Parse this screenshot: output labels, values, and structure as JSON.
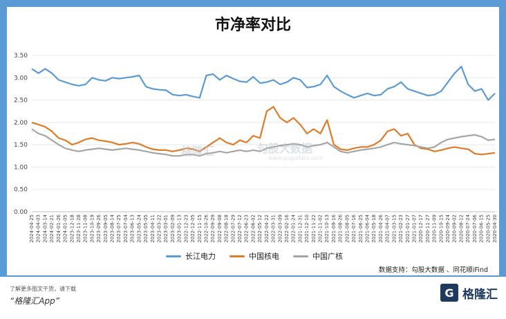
{
  "title": "市净率对比",
  "source": "数据支持：勾股大数据 、同花顺iFind",
  "watermark": {
    "brand": "格隆汇",
    "brand2": "勾股大数据",
    "url": "www.gogudata.com"
  },
  "footer": {
    "note": "了解更多图文干货，请下载",
    "app": "“格隆汇App”",
    "logo_text": "格隆汇"
  },
  "colors": {
    "series1": "#5b9bd5",
    "series2": "#e07b28",
    "series3": "#a5a5a5",
    "frame": "#5b9bd5"
  },
  "chart_data": {
    "type": "line",
    "title": "市净率对比",
    "ylim": [
      0,
      3.5
    ],
    "yticks": [
      "0.00",
      "0.50",
      "1.00",
      "1.50",
      "2.00",
      "2.50",
      "3.00",
      "3.50"
    ],
    "x": [
      "2024-04-25",
      "2024-04-03",
      "2024-03-14",
      "2024-02-21",
      "2024-01-26",
      "2024-01-05",
      "2023-12-18",
      "2023-11-28",
      "2023-11-08",
      "2023-10-19",
      "2023-09-26",
      "2023-09-05",
      "2023-08-14",
      "2023-07-25",
      "2023-07-04",
      "2023-06-13",
      "2023-05-24",
      "2023-05-05",
      "2023-04-11",
      "2023-03-22",
      "2023-03-01",
      "2023-02-09",
      "2023-01-13",
      "2022-12-23",
      "2022-12-05",
      "2022-11-15",
      "2022-10-26",
      "2022-09-29",
      "2022-09-08",
      "2022-08-18",
      "2022-07-29",
      "2022-07-12",
      "2022-06-23",
      "2022-06-02",
      "2022-05-12",
      "2022-04-22",
      "2022-03-31",
      "2022-03-09",
      "2022-02-16",
      "2022-01-24",
      "2021-12-31",
      "2021-12-10",
      "2021-11-22",
      "2021-11-02",
      "2021-10-13",
      "2021-09-16",
      "2021-08-26",
      "2021-08-05",
      "2021-07-16",
      "2021-06-25",
      "2021-06-04",
      "2021-05-18",
      "2021-04-26",
      "2021-04-07",
      "2021-03-15",
      "2021-02-23",
      "2021-01-27",
      "2021-01-07",
      "2020-12-17",
      "2020-11-27",
      "2020-11-09",
      "2020-10-15",
      "2020-09-24",
      "2020-09-02",
      "2020-08-12",
      "2020-07-24",
      "2020-07-06",
      "2020-06-15",
      "2020-05-25",
      "2020-04-30"
    ],
    "series": [
      {
        "name": "长江电力",
        "values": [
          3.2,
          3.1,
          3.2,
          3.1,
          2.95,
          2.9,
          2.85,
          2.82,
          2.85,
          3.0,
          2.95,
          2.93,
          3.0,
          2.98,
          3.0,
          3.02,
          3.05,
          2.8,
          2.75,
          2.73,
          2.72,
          2.62,
          2.6,
          2.62,
          2.58,
          2.55,
          3.05,
          3.08,
          2.95,
          3.05,
          2.98,
          2.92,
          2.9,
          3.02,
          2.88,
          2.9,
          2.95,
          2.85,
          2.9,
          3.0,
          2.95,
          2.78,
          2.8,
          2.85,
          3.05,
          2.8,
          2.7,
          2.62,
          2.55,
          2.6,
          2.65,
          2.6,
          2.62,
          2.75,
          2.8,
          2.9,
          2.75,
          2.7,
          2.65,
          2.6,
          2.62,
          2.7,
          2.9,
          3.1,
          3.25,
          2.85,
          2.7,
          2.75,
          2.5,
          2.65
        ]
      },
      {
        "name": "中国核电",
        "values": [
          2.0,
          1.95,
          1.9,
          1.8,
          1.65,
          1.6,
          1.5,
          1.55,
          1.62,
          1.65,
          1.6,
          1.58,
          1.55,
          1.5,
          1.52,
          1.55,
          1.52,
          1.45,
          1.4,
          1.38,
          1.38,
          1.35,
          1.38,
          1.42,
          1.4,
          1.35,
          1.45,
          1.55,
          1.65,
          1.55,
          1.5,
          1.6,
          1.55,
          1.7,
          1.65,
          2.25,
          2.35,
          2.1,
          2.0,
          2.1,
          1.95,
          1.75,
          1.85,
          1.75,
          2.05,
          1.5,
          1.4,
          1.38,
          1.42,
          1.45,
          1.45,
          1.5,
          1.6,
          1.8,
          1.85,
          1.7,
          1.75,
          1.5,
          1.42,
          1.4,
          1.35,
          1.38,
          1.42,
          1.45,
          1.42,
          1.4,
          1.3,
          1.28,
          1.3,
          1.32
        ]
      },
      {
        "name": "中国广核",
        "values": [
          1.85,
          1.75,
          1.7,
          1.6,
          1.5,
          1.42,
          1.38,
          1.35,
          1.38,
          1.4,
          1.42,
          1.4,
          1.38,
          1.4,
          1.42,
          1.4,
          1.38,
          1.35,
          1.32,
          1.3,
          1.28,
          1.25,
          1.25,
          1.28,
          1.28,
          1.25,
          1.3,
          1.32,
          1.35,
          1.32,
          1.35,
          1.38,
          1.35,
          1.38,
          1.35,
          1.42,
          1.45,
          1.48,
          1.5,
          1.52,
          1.5,
          1.45,
          1.48,
          1.5,
          1.55,
          1.45,
          1.35,
          1.32,
          1.35,
          1.38,
          1.4,
          1.42,
          1.45,
          1.5,
          1.55,
          1.52,
          1.5,
          1.48,
          1.45,
          1.42,
          1.45,
          1.55,
          1.62,
          1.65,
          1.68,
          1.7,
          1.72,
          1.68,
          1.6,
          1.62
        ]
      }
    ]
  }
}
